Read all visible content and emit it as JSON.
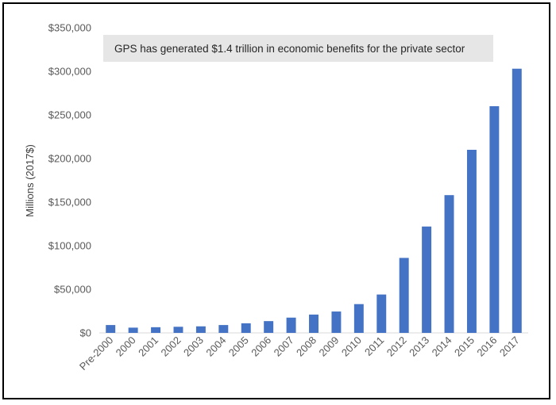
{
  "chart_data": {
    "type": "bar",
    "ylabel": "Millions (2017$)",
    "annotation": "GPS has generated $1.4 trillion in economic benefits for the private sector",
    "categories": [
      "Pre-2000",
      "2000",
      "2001",
      "2002",
      "2003",
      "2004",
      "2005",
      "2006",
      "2007",
      "2008",
      "2009",
      "2010",
      "2011",
      "2012",
      "2013",
      "2014",
      "2015",
      "2016",
      "2017"
    ],
    "values": [
      9000,
      6000,
      6500,
      7000,
      7500,
      9000,
      11000,
      13500,
      17500,
      21000,
      24500,
      33000,
      44000,
      86000,
      122000,
      158000,
      210000,
      260000,
      303000
    ],
    "yticks": [
      "$0",
      "$50,000",
      "$100,000",
      "$150,000",
      "$200,000",
      "$250,000",
      "$300,000",
      "$350,000"
    ],
    "ylim": [
      0,
      350000
    ],
    "bar_color": "#4472C4",
    "annotation_bg": "#E7E6E6",
    "grid": false,
    "legend": "none"
  }
}
